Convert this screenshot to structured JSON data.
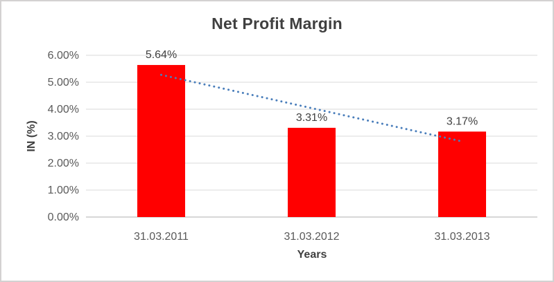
{
  "chart_data": {
    "type": "bar",
    "title": "Net Profit Margin",
    "xlabel": "Years",
    "ylabel": "IN (%)",
    "categories": [
      "31.03.2011",
      "31.03.2012",
      "31.03.2013"
    ],
    "values": [
      5.64,
      3.31,
      3.17
    ],
    "data_labels": [
      "5.64%",
      "3.31%",
      "3.17%"
    ],
    "y_tick_labels": [
      "0.00%",
      "1.00%",
      "2.00%",
      "3.00%",
      "4.00%",
      "5.00%",
      "6.00%"
    ],
    "ylim": [
      0,
      6
    ],
    "y_tick_step": 1,
    "grid": true,
    "legend": false,
    "trendline": {
      "type": "linear",
      "style": "dotted",
      "start_value": 5.275,
      "end_value": 2.805
    },
    "colors": {
      "bar": "#ff0000",
      "trendline": "#4a7ebb",
      "gridline": "#d9d9d9",
      "axis_line": "#bfbfbf",
      "title_text": "#3f3f3f",
      "tick_text": "#595959",
      "data_label_text": "#404040",
      "chart_border": "#d3d1d1",
      "background": "#ffffff"
    }
  }
}
